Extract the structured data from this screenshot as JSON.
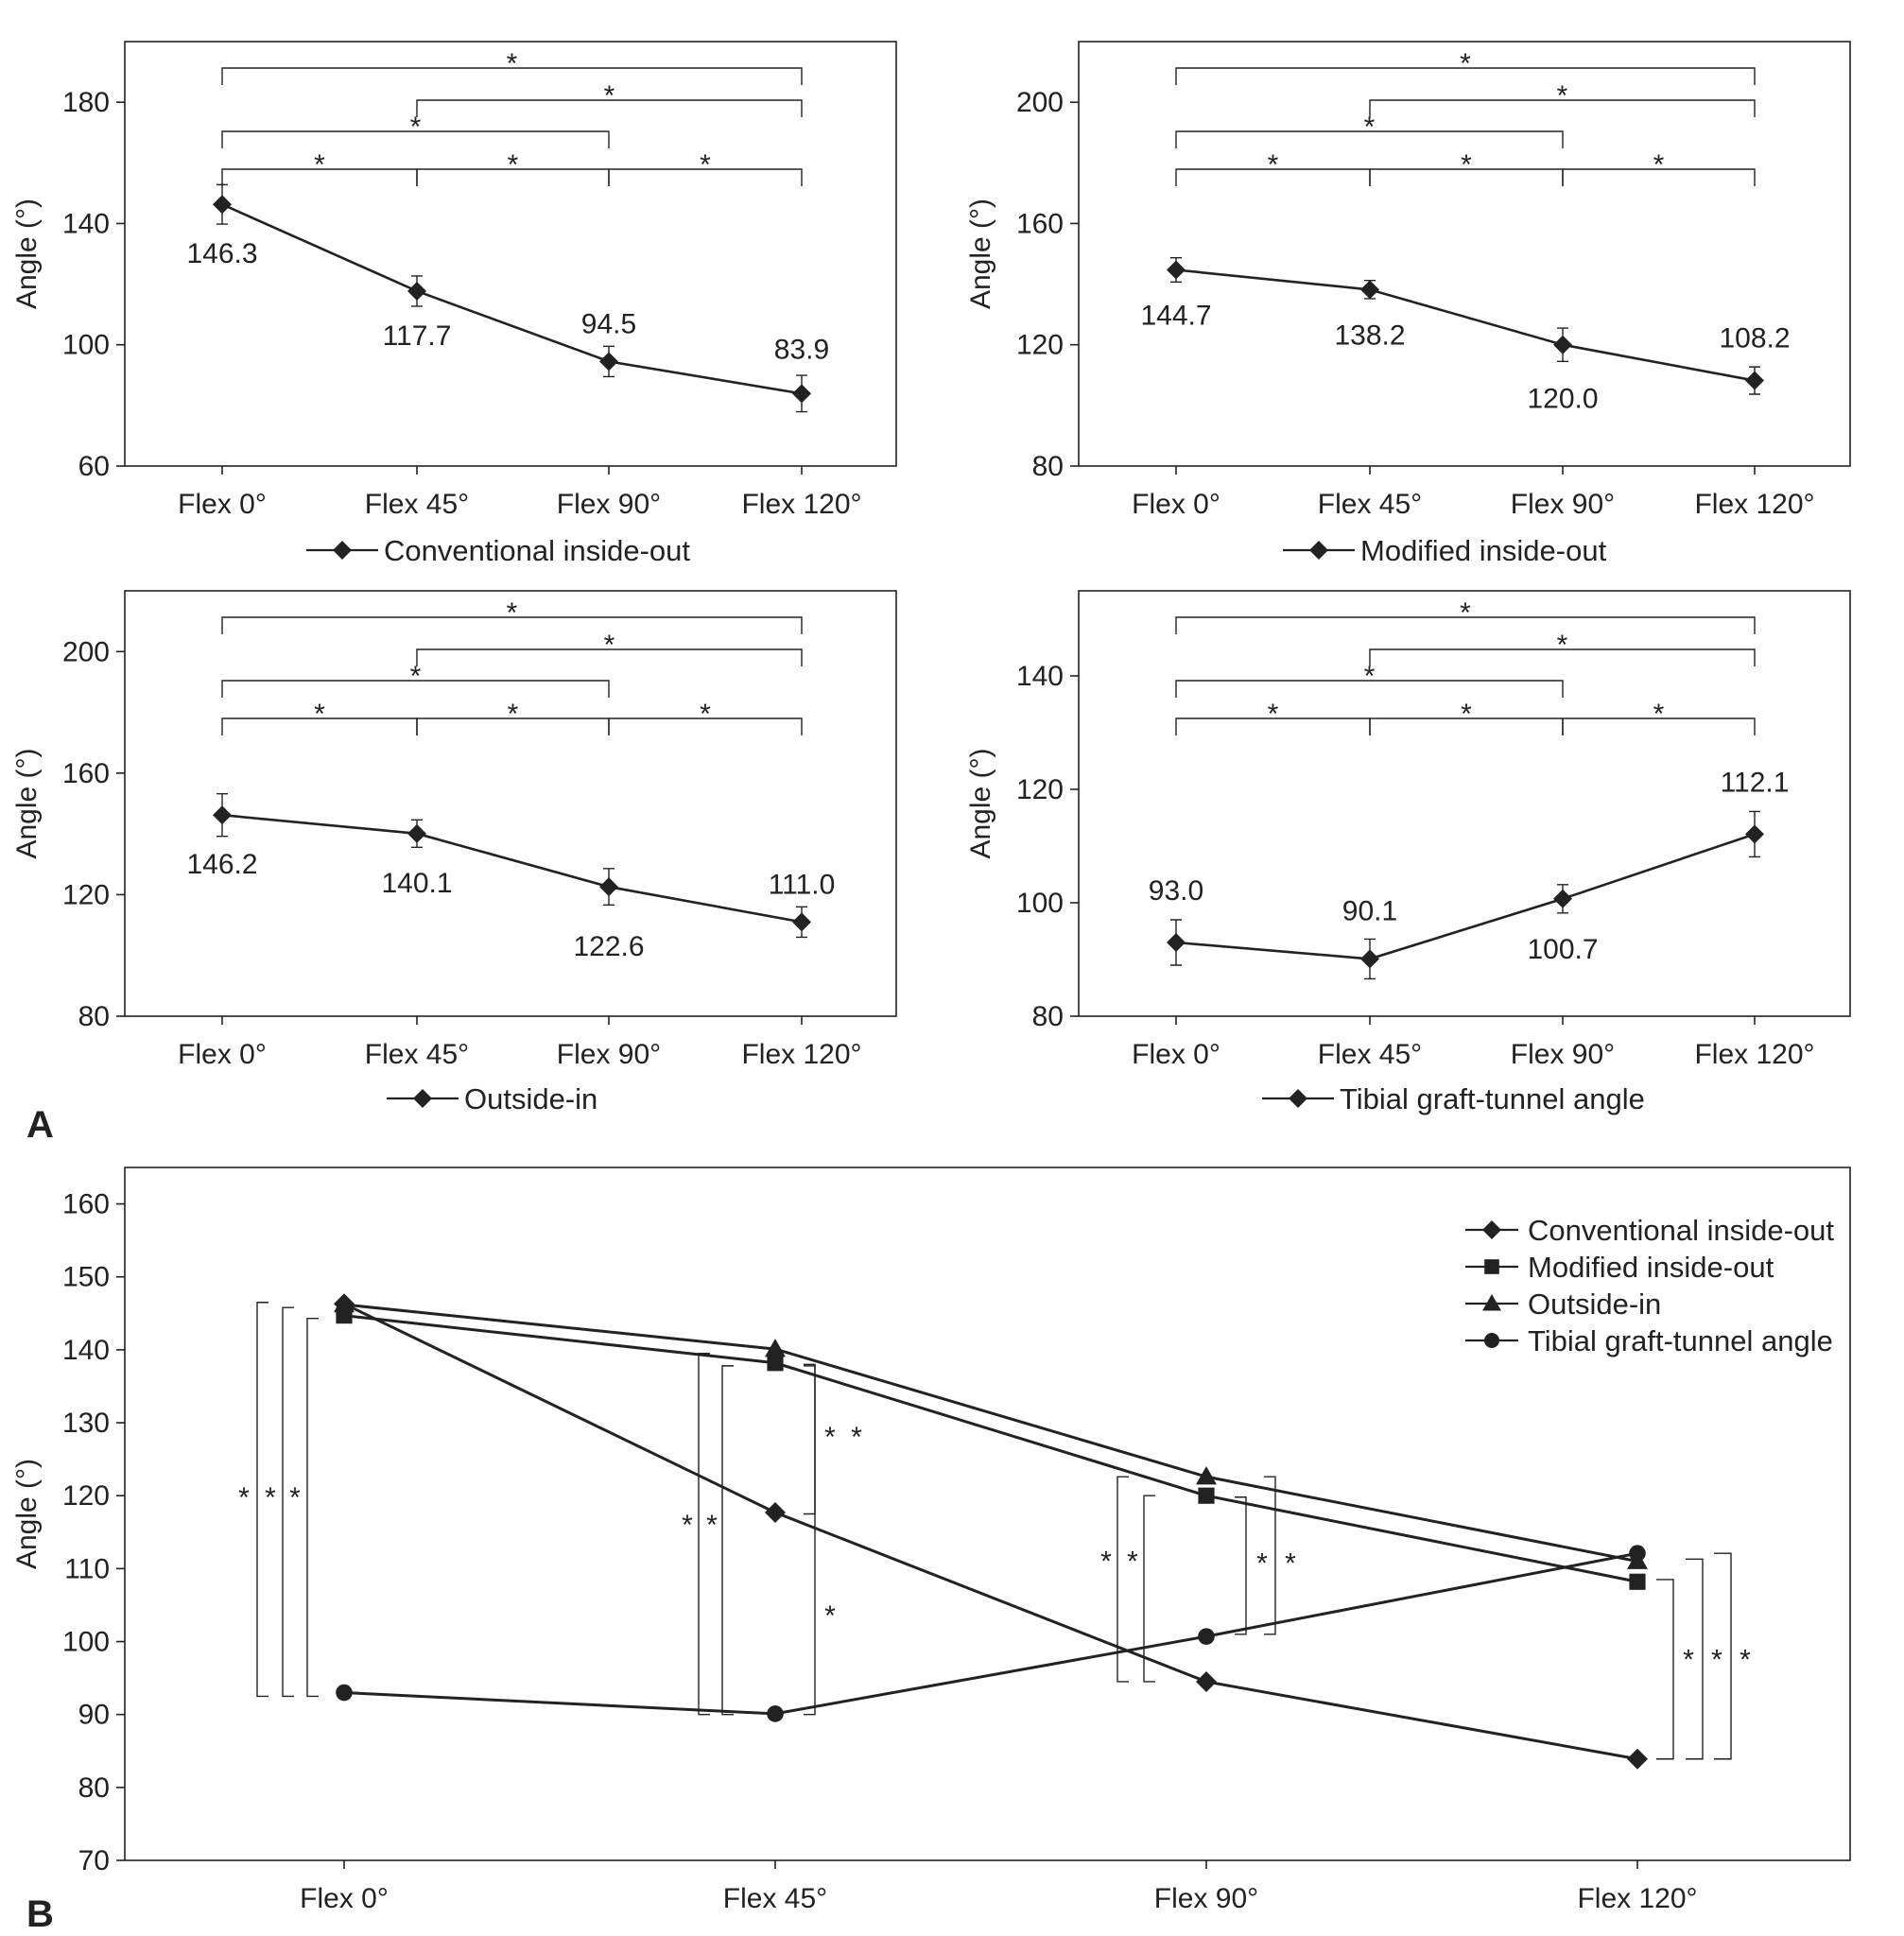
{
  "panel_labels": [
    "A",
    "B"
  ],
  "star_symbol": "*",
  "line_color": "#222222",
  "chart_data": [
    {
      "type": "line",
      "panel": "A",
      "ylabel": "Angle (°)",
      "ylim": [
        60,
        200
      ],
      "yticks": [
        60,
        100,
        140,
        180
      ],
      "categories": [
        "Flex 0°",
        "Flex 45°",
        "Flex 90°",
        "Flex 120°"
      ],
      "series": [
        {
          "name": "Conventional inside-out",
          "marker": "diamond",
          "values": [
            146.3,
            117.7,
            94.5,
            83.9
          ],
          "error": [
            6.5,
            5,
            5,
            6
          ]
        }
      ],
      "data_labels": [
        "146.3",
        "117.7",
        "94.5",
        "83.9"
      ],
      "significance": [
        [
          0,
          3
        ],
        [
          1,
          3
        ],
        [
          0,
          2
        ],
        [
          0,
          1
        ],
        [
          1,
          2
        ],
        [
          2,
          3
        ]
      ],
      "legend": "bottom-center",
      "grid": false
    },
    {
      "type": "line",
      "panel": "A",
      "ylabel": "Angle (°)",
      "ylim": [
        80,
        220
      ],
      "yticks": [
        80,
        120,
        160,
        200
      ],
      "categories": [
        "Flex 0°",
        "Flex 45°",
        "Flex 90°",
        "Flex 120°"
      ],
      "series": [
        {
          "name": "Modified inside-out",
          "marker": "diamond",
          "values": [
            144.7,
            138.2,
            120.0,
            108.2
          ],
          "error": [
            4,
            3,
            5.5,
            4.5
          ]
        }
      ],
      "data_labels": [
        "144.7",
        "138.2",
        "120.0",
        "108.2"
      ],
      "significance": [
        [
          0,
          3
        ],
        [
          1,
          3
        ],
        [
          0,
          2
        ],
        [
          0,
          1
        ],
        [
          1,
          2
        ],
        [
          2,
          3
        ]
      ],
      "legend": "bottom-center",
      "grid": false
    },
    {
      "type": "line",
      "panel": "A",
      "ylabel": "Angle (°)",
      "ylim": [
        80,
        220
      ],
      "yticks": [
        80,
        120,
        160,
        200
      ],
      "categories": [
        "Flex 0°",
        "Flex 45°",
        "Flex 90°",
        "Flex 120°"
      ],
      "series": [
        {
          "name": "Outside-in",
          "marker": "diamond",
          "values": [
            146.2,
            140.1,
            122.6,
            111.0
          ],
          "error": [
            7,
            4.5,
            6,
            5
          ]
        }
      ],
      "data_labels": [
        "146.2",
        "140.1",
        "122.6",
        "111.0"
      ],
      "significance": [
        [
          0,
          3
        ],
        [
          1,
          3
        ],
        [
          0,
          2
        ],
        [
          0,
          1
        ],
        [
          1,
          2
        ],
        [
          2,
          3
        ]
      ],
      "legend": "bottom-center",
      "grid": false
    },
    {
      "type": "line",
      "panel": "A",
      "ylabel": "Angle (°)",
      "ylim": [
        80,
        155
      ],
      "yticks": [
        80,
        100,
        120,
        140
      ],
      "categories": [
        "Flex 0°",
        "Flex 45°",
        "Flex 90°",
        "Flex 120°"
      ],
      "series": [
        {
          "name": "Tibial graft-tunnel angle",
          "marker": "diamond",
          "values": [
            93.0,
            90.1,
            100.7,
            112.1
          ],
          "error": [
            4,
            3.5,
            2.5,
            4
          ]
        }
      ],
      "data_labels": [
        "93.0",
        "90.1",
        "100.7",
        "112.1"
      ],
      "significance": [
        [
          0,
          3
        ],
        [
          1,
          3
        ],
        [
          0,
          2
        ],
        [
          0,
          1
        ],
        [
          1,
          2
        ],
        [
          2,
          3
        ]
      ],
      "legend": "bottom-center",
      "grid": false
    },
    {
      "type": "line",
      "panel": "B",
      "ylabel": "Angle (°)",
      "ylim": [
        70,
        165
      ],
      "yticks": [
        70,
        80,
        90,
        100,
        110,
        120,
        130,
        140,
        150,
        160
      ],
      "categories": [
        "Flex 0°",
        "Flex 45°",
        "Flex 90°",
        "Flex 120°"
      ],
      "series": [
        {
          "name": "Conventional inside-out",
          "marker": "diamond",
          "values": [
            146.3,
            117.7,
            94.5,
            83.9
          ]
        },
        {
          "name": "Modified inside-out",
          "marker": "square",
          "values": [
            144.7,
            138.2,
            120.0,
            108.2
          ]
        },
        {
          "name": "Outside-in",
          "marker": "triangle",
          "values": [
            146.2,
            140.1,
            122.6,
            111.0
          ]
        },
        {
          "name": "Tibial graft-tunnel angle",
          "marker": "circle",
          "values": [
            93.0,
            90.1,
            100.7,
            112.1
          ]
        }
      ],
      "legend": "top-right",
      "grid": false
    }
  ]
}
